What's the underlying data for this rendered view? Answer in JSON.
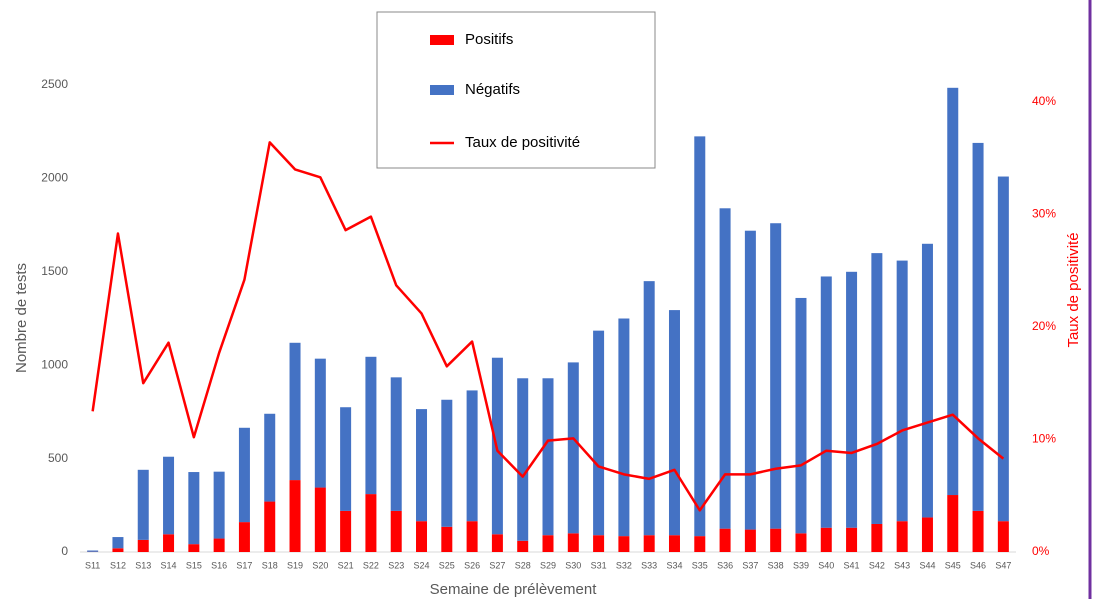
{
  "chart_data": {
    "type": "bar",
    "stacked": true,
    "x_label": "Semaine de prélèvement",
    "y_label": "Nombre de tests",
    "y2_label": "Taux de positivité",
    "categories": [
      "S11",
      "S12",
      "S13",
      "S14",
      "S15",
      "S16",
      "S17",
      "S18",
      "S19",
      "S20",
      "S21",
      "S22",
      "S23",
      "S24",
      "S25",
      "S26",
      "S27",
      "S28",
      "S29",
      "S30",
      "S31",
      "S32",
      "S33",
      "S34",
      "S35",
      "S36",
      "S37",
      "S38",
      "S39",
      "S40",
      "S41",
      "S42",
      "S43",
      "S44",
      "S45",
      "S46",
      "S47"
    ],
    "series": [
      {
        "name": "Positifs",
        "type": "bar",
        "color": "#ff0000",
        "values": [
          1,
          20,
          65,
          95,
          42,
          72,
          160,
          270,
          385,
          345,
          220,
          310,
          220,
          165,
          135,
          165,
          95,
          60,
          90,
          100,
          90,
          85,
          90,
          90,
          85,
          125,
          120,
          125,
          100,
          130,
          130,
          150,
          165,
          185,
          305,
          220,
          165
        ]
      },
      {
        "name": "Négatifs",
        "type": "bar",
        "color": "#4472c4",
        "values": [
          7,
          60,
          375,
          415,
          386,
          358,
          505,
          470,
          735,
          690,
          555,
          735,
          715,
          600,
          680,
          700,
          945,
          870,
          840,
          915,
          1095,
          1165,
          1360,
          1205,
          2140,
          1715,
          1600,
          1635,
          1260,
          1345,
          1370,
          1450,
          1395,
          1465,
          2180,
          1970,
          1845
        ]
      },
      {
        "name": "Taux de positivité",
        "type": "line",
        "axis": "y2",
        "color": "#ff0000",
        "values": [
          12.5,
          28.3,
          15,
          18.6,
          10.2,
          17.7,
          24.2,
          36.4,
          34,
          33.3,
          28.6,
          29.8,
          23.7,
          21.2,
          16.5,
          18.7,
          9,
          6.7,
          9.9,
          10.1,
          7.6,
          6.9,
          6.5,
          7.3,
          3.7,
          6.9,
          6.9,
          7.4,
          7.7,
          9,
          8.8,
          9.6,
          10.8,
          11.5,
          12.2,
          10.1,
          8.3
        ]
      }
    ],
    "ylim": [
      0,
      2500
    ],
    "yticks": [
      0,
      500,
      1000,
      1500,
      2000,
      2500
    ],
    "y2lim": [
      0,
      41.5
    ],
    "y2ticks": [
      {
        "value": 0,
        "label": "0%"
      },
      {
        "value": 10,
        "label": "10%"
      },
      {
        "value": 20,
        "label": "20%"
      },
      {
        "value": 30,
        "label": "30%"
      },
      {
        "value": 40,
        "label": "40%"
      }
    ],
    "grid": false
  }
}
